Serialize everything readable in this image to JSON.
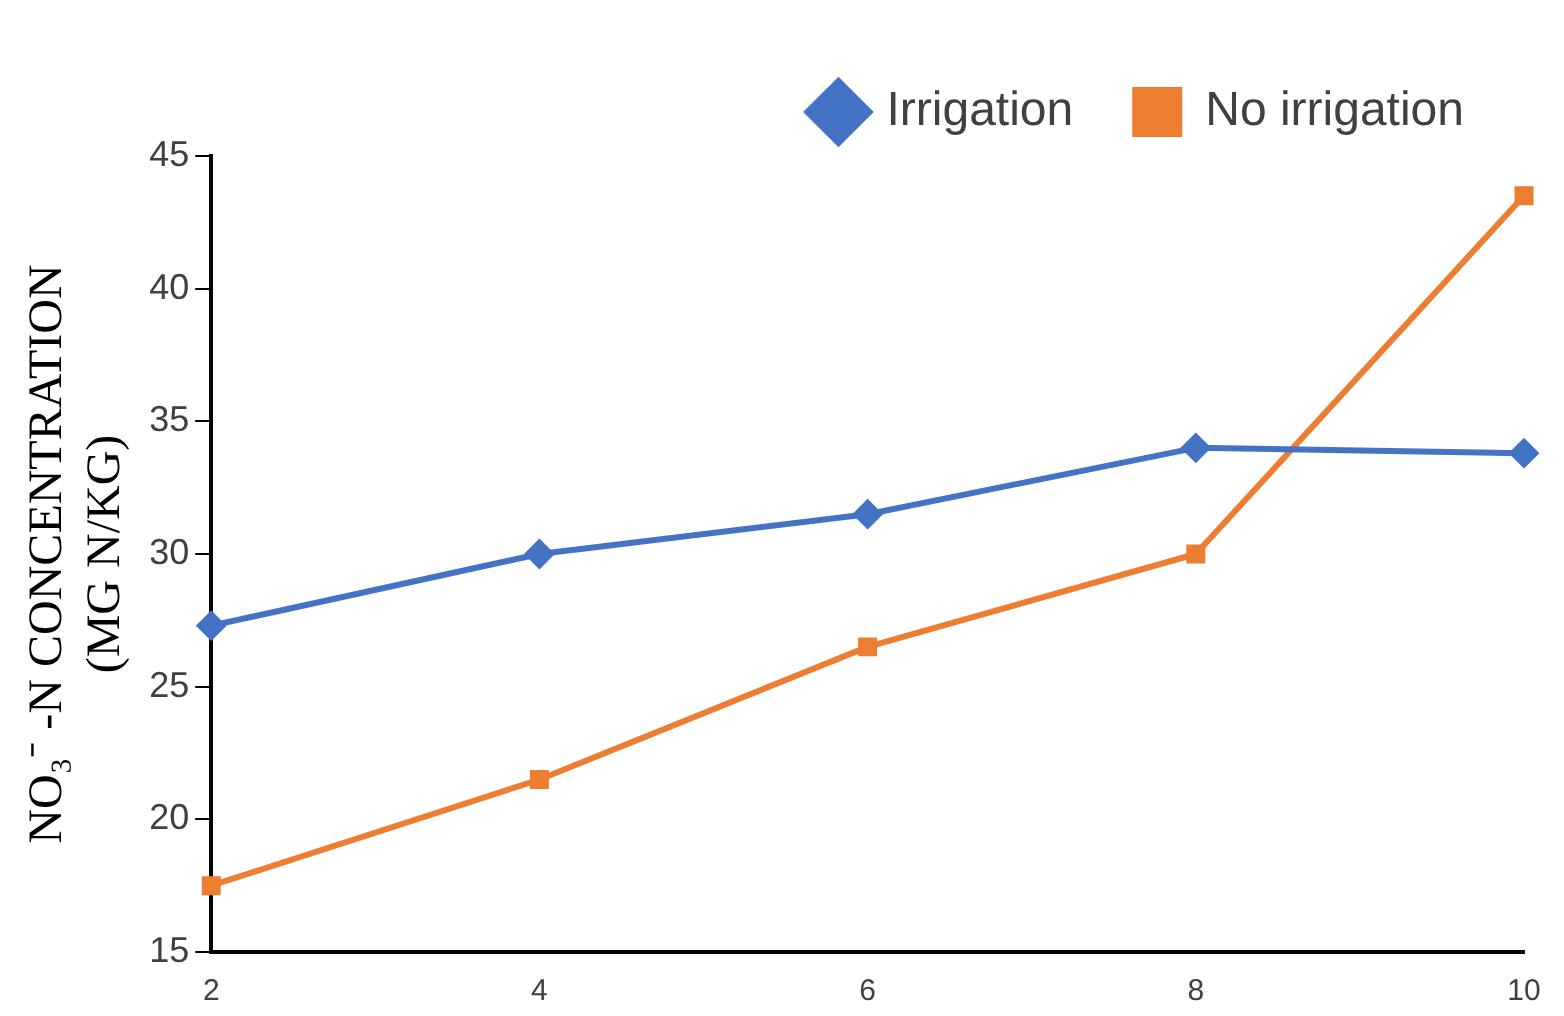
{
  "chart_data": {
    "type": "line",
    "ylabel": "NO₃⁻ -N CONCENTRATION (MG N/KG)",
    "categories": [
      "2",
      "4",
      "6",
      "8",
      "10"
    ],
    "series": [
      {
        "name": "Irrigation",
        "color": "#4472c4",
        "values": [
          27.3,
          30.0,
          31.5,
          34.0,
          33.8
        ],
        "marker": "diamond"
      },
      {
        "name": "No irrigation",
        "color": "#ed7d31",
        "values": [
          17.5,
          21.5,
          26.5,
          30.0,
          43.5
        ],
        "marker": "square"
      }
    ],
    "ylim": [
      15,
      45
    ],
    "yticks": [
      15,
      20,
      25,
      30,
      35,
      40,
      45
    ],
    "grid": false,
    "legend": "top",
    "line_style": "solid"
  }
}
